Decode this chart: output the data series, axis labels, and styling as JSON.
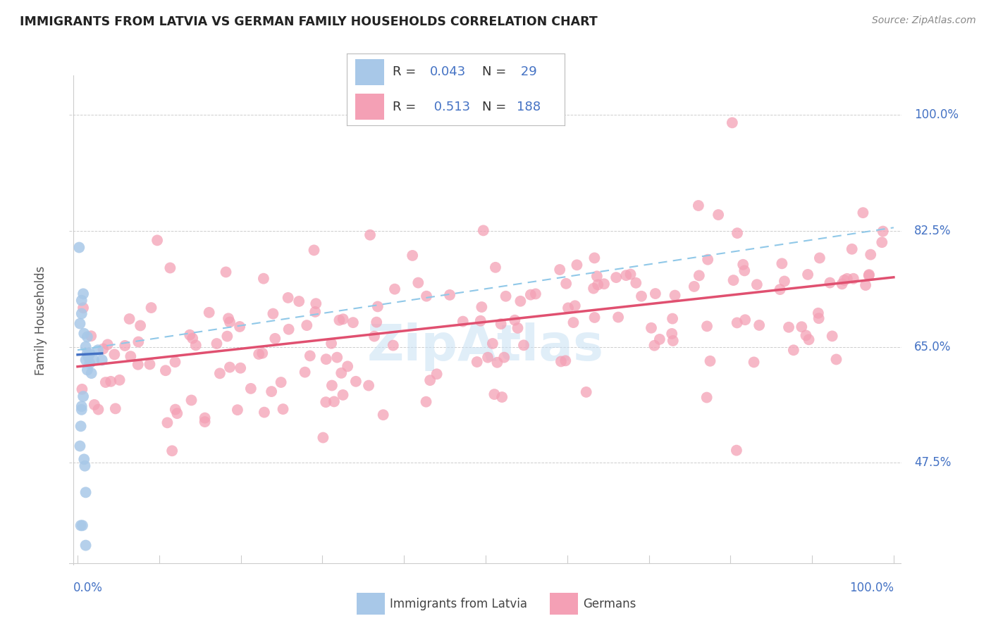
{
  "title": "IMMIGRANTS FROM LATVIA VS GERMAN FAMILY HOUSEHOLDS CORRELATION CHART",
  "source": "Source: ZipAtlas.com",
  "ylabel": "Family Households",
  "xlim": [
    0,
    100
  ],
  "ytick_labels": [
    "47.5%",
    "65.0%",
    "82.5%",
    "100.0%"
  ],
  "ytick_values": [
    47.5,
    65.0,
    82.5,
    100.0
  ],
  "watermark": "ZipAtlas",
  "color_blue": "#A8C8E8",
  "color_pink": "#F4A0B5",
  "color_blue_text": "#4472C4",
  "trendline_blue_color": "#4472C4",
  "trendline_pink_color": "#E05070",
  "trendline_dashed_color": "#90C8E8",
  "blue_x": [
    0.3,
    0.5,
    0.5,
    0.7,
    0.8,
    1.0,
    1.0,
    1.2,
    1.2,
    1.2,
    1.3,
    1.5,
    1.5,
    1.7,
    2.0,
    2.5,
    3.0,
    0.2,
    0.3,
    0.4,
    0.5,
    0.5,
    0.7,
    0.8,
    0.9,
    1.0,
    1.0,
    0.4,
    0.6
  ],
  "blue_y": [
    68.5,
    72.0,
    70.0,
    73.0,
    67.0,
    65.0,
    63.0,
    64.0,
    66.5,
    61.5,
    63.5,
    62.5,
    64.0,
    61.0,
    63.0,
    64.5,
    63.0,
    80.0,
    50.0,
    53.0,
    55.5,
    56.0,
    57.5,
    48.0,
    47.0,
    43.0,
    35.0,
    38.0,
    38.0
  ],
  "blue_trend_x": [
    0,
    3.0
  ],
  "blue_trend_y": [
    63.8,
    64.0
  ],
  "pink_trend_x0": 0,
  "pink_trend_x1": 100,
  "pink_trend_y0": 62.0,
  "pink_trend_y1": 75.5,
  "dashed_trend_y0": 64.5,
  "dashed_trend_y1": 83.0,
  "grid_color": "#C8C8C8",
  "grid_linestyle": "--",
  "spine_color": "#CCCCCC",
  "ytick_label_color": "#4472C4",
  "xtick_label_color": "#4472C4",
  "legend_r1_black": "R = ",
  "legend_r1_val": "0.043",
  "legend_n1_black": "N = ",
  "legend_n1_val": " 29",
  "legend_r2_black": "R =  ",
  "legend_r2_val": "0.513",
  "legend_n2_black": "N = ",
  "legend_n2_val": "188"
}
